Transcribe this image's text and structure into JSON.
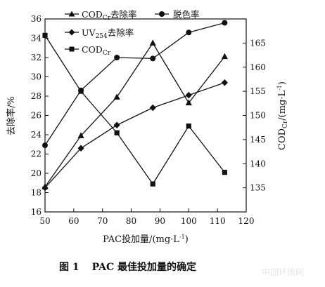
{
  "chart_data": {
    "type": "line",
    "x": [
      50,
      62.5,
      75,
      87.5,
      100,
      112.5
    ],
    "xlabel": "PAC投加量/(mg·L⁻¹)",
    "xlim": [
      50,
      120
    ],
    "xticks": [
      50,
      60,
      70,
      80,
      90,
      100,
      110,
      120
    ],
    "ylabel_left": "去除率/%",
    "ylim_left": [
      16,
      36
    ],
    "yticks_left": [
      16,
      18,
      20,
      22,
      24,
      26,
      28,
      30,
      32,
      34,
      36
    ],
    "ylabel_right": "COD_Cr/(mg·L⁻¹)",
    "ylim_right": [
      130,
      170
    ],
    "yticks_right": [
      135,
      140,
      145,
      150,
      155,
      160,
      165
    ],
    "series": [
      {
        "name": "COD_Cr去除率",
        "marker": "triangle",
        "axis": "left",
        "values": [
          18.6,
          23.9,
          27.9,
          33.5,
          27.3,
          32.1
        ]
      },
      {
        "name": "脱色率",
        "marker": "circle",
        "axis": "left",
        "values": [
          22.9,
          28.6,
          32.0,
          31.9,
          34.6,
          35.6
        ]
      },
      {
        "name": "UV_254去除率",
        "marker": "diamond",
        "axis": "left",
        "values": [
          18.5,
          22.6,
          25.0,
          26.8,
          28.1,
          29.4
        ]
      },
      {
        "name": "COD_Cr",
        "marker": "square",
        "axis": "right",
        "values": [
          166.6,
          155.0,
          146.4,
          135.8,
          147.8,
          138.2
        ]
      }
    ]
  },
  "legend": {
    "cod_removal": {
      "main": "COD",
      "sub": "Cr",
      "rest": "去除率"
    },
    "decolor": {
      "text": "脱色率"
    },
    "uv_removal": {
      "main": "UV",
      "sub": "254",
      "rest": "去除率"
    },
    "cod": {
      "main": "COD",
      "sub": "Cr"
    }
  },
  "axis_titles": {
    "x_main": "PAC投加量/(mg·L",
    "x_sup": "-1",
    "x_end": ")",
    "left": "去除率/%",
    "right_main": "COD",
    "right_sub": "Cr",
    "right_rest": "/(mg·L",
    "right_sup": "-1",
    "right_end": ")"
  },
  "caption": {
    "label": "图 1",
    "title": "PAC 最佳投加量的确定"
  },
  "watermark": "中国环境网"
}
